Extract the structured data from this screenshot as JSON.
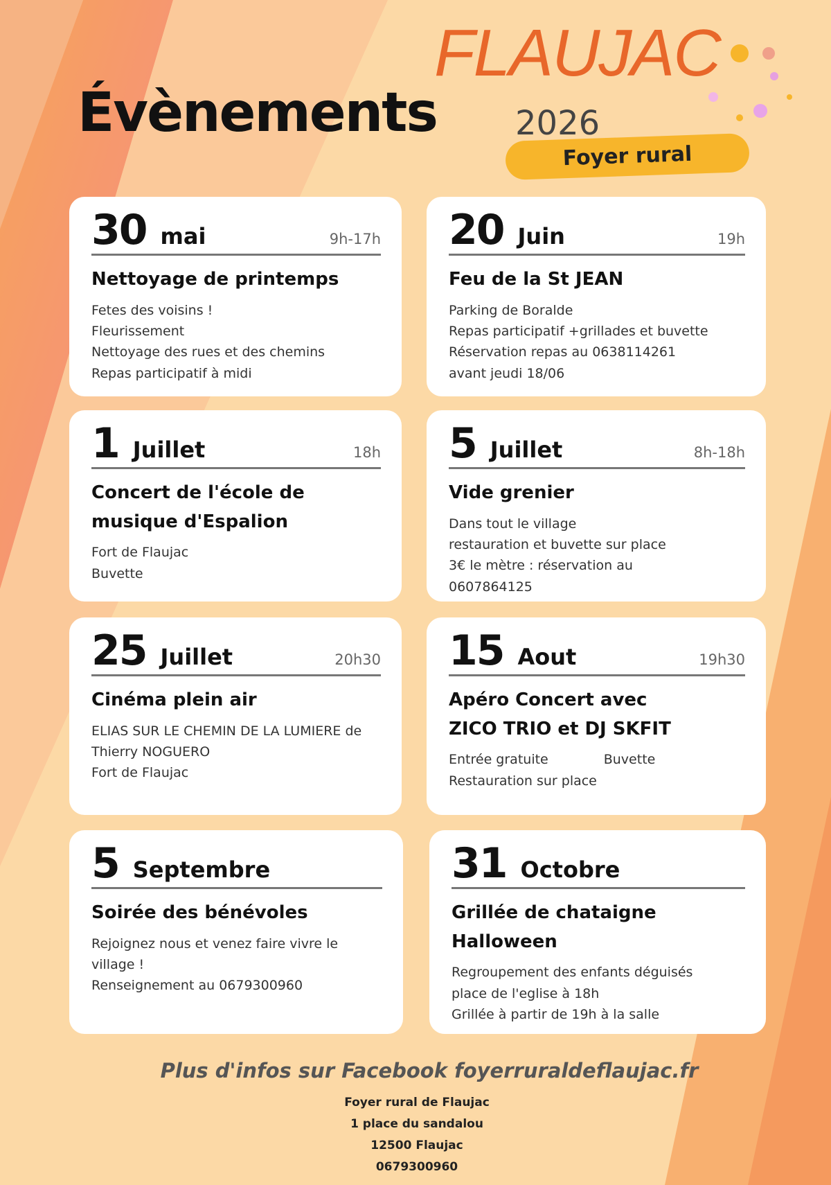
{
  "header": {
    "brand": "FLAUJAC",
    "title": "Évènements",
    "year": "2026",
    "badge": "Foyer rural"
  },
  "events": [
    {
      "day": "30",
      "month": "mai",
      "time": "9h-17h",
      "title": [
        "Nettoyage de printemps"
      ],
      "details": [
        "Fetes des voisins !",
        "Fleurissement",
        "Nettoyage des rues et des chemins",
        "Repas participatif à midi"
      ]
    },
    {
      "day": "20",
      "month": "Juin",
      "time": "19h",
      "title": [
        "Feu de la St JEAN"
      ],
      "details": [
        "Parking de Boralde",
        "Repas participatif +grillades et buvette",
        "Réservation repas au 0638114261",
        "avant jeudi 18/06"
      ]
    },
    {
      "day": "1",
      "month": "Juillet",
      "time": "18h",
      "title": [
        "Concert de l'école de",
        "musique d'Espalion"
      ],
      "details": [
        "Fort de Flaujac",
        "Buvette"
      ]
    },
    {
      "day": "5",
      "month": "Juillet",
      "time": "8h-18h",
      "title": [
        "Vide grenier"
      ],
      "details": [
        "Dans tout le village",
        "restauration et buvette sur place",
        "3€ le mètre : réservation au",
        "0607864125"
      ]
    },
    {
      "day": "25",
      "month": "Juillet",
      "time": "20h30",
      "title": [
        "Cinéma plein air"
      ],
      "details": [
        "ELIAS SUR LE CHEMIN DE LA LUMIERE de Thierry NOGUERO",
        "Fort de Flaujac"
      ]
    },
    {
      "day": "15",
      "month": "Aout",
      "time": "19h30",
      "title": [
        "Apéro Concert avec",
        "ZICO TRIO et DJ SKFIT"
      ],
      "details": [
        [
          "Entrée gratuite",
          "Buvette"
        ],
        "Restauration sur place"
      ]
    },
    {
      "day": "5",
      "month": "Septembre",
      "title": [
        "Soirée des bénévoles"
      ],
      "details": [
        "Rejoignez nous et venez faire vivre le village !",
        "Renseignement au 0679300960"
      ]
    },
    {
      "day": "31",
      "month": "Octobre",
      "title": [
        "Grillée de chataigne",
        "Halloween"
      ],
      "details": [
        "Regroupement des enfants déguisés",
        "place de l'eglise à 18h",
        "Grillée à partir de 19h à la salle"
      ]
    }
  ],
  "footer": {
    "info": "Plus d'infos sur Facebook foyerruraldeflaujac.fr",
    "address": [
      "Foyer rural de Flaujac",
      "1 place du sandalou",
      "12500 Flaujac",
      "0679300960"
    ]
  }
}
